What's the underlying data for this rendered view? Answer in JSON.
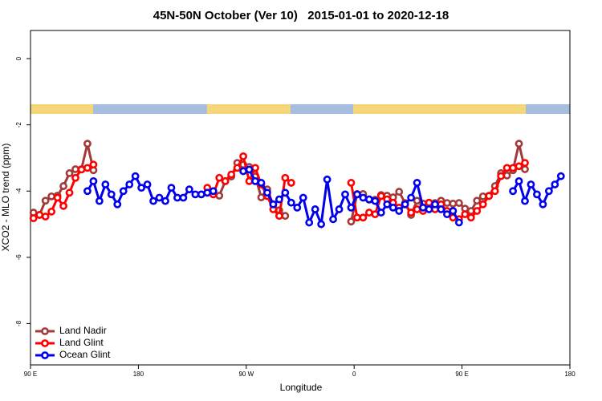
{
  "chart_data": {
    "type": "line",
    "title": "45N-50N October (Ver 10)   2015-01-01 to 2020-12-18",
    "x_label": "Longitude",
    "y_label": "XCO2 - MLO trend (ppm)",
    "xlim": [
      90,
      540
    ],
    "xticks": [
      {
        "value": 90,
        "label": "90 E"
      },
      {
        "value": 180,
        "label": "180"
      },
      {
        "value": 270,
        "label": "90 W"
      },
      {
        "value": 360,
        "label": "0"
      },
      {
        "value": 450,
        "label": "90 E"
      },
      {
        "value": 540,
        "label": "180"
      }
    ],
    "ylim": [
      -9.25,
      0.85
    ],
    "yticks": [
      0,
      -2,
      -4,
      -6,
      -8
    ],
    "legend": "bottom-left",
    "x": [
      92.5,
      97.5,
      102.5,
      107.5,
      112.5,
      117.5,
      122.5,
      127.5,
      132.5,
      137.5,
      142.5,
      147.5,
      152.5,
      157.5,
      162.5,
      167.5,
      172.5,
      177.5,
      182.5,
      187.5,
      192.5,
      197.5,
      202.5,
      207.5,
      212.5,
      217.5,
      222.5,
      227.5,
      232.5,
      237.5,
      242.5,
      247.5,
      252.5,
      257.5,
      262.5,
      267.5,
      272.5,
      277.5,
      282.5,
      287.5,
      292.5,
      297.5,
      302.5,
      307.5,
      312.5,
      317.5,
      322.5,
      327.5,
      332.5,
      337.5,
      342.5,
      347.5,
      352.5,
      357.5,
      362.5,
      367.5,
      372.5,
      377.5,
      382.5,
      387.5,
      392.5,
      397.5,
      402.5,
      407.5,
      412.5,
      417.5,
      422.5,
      427.5,
      432.5,
      437.5,
      442.5,
      447.5,
      452.5,
      457.5,
      462.5,
      467.5,
      472.5,
      477.5,
      482.5,
      487.5,
      492.5,
      497.5,
      502.5,
      507.5,
      512.5,
      517.5,
      522.5,
      527.5,
      532.5
    ],
    "series": [
      {
        "name": "Land Nadir",
        "color": "#a33a3a",
        "values": [
          -4.65,
          -4.72,
          -4.29,
          -4.16,
          -4.14,
          -3.85,
          -3.46,
          -3.34,
          -3.34,
          -2.57,
          -3.37,
          null,
          null,
          null,
          null,
          null,
          null,
          null,
          null,
          null,
          null,
          null,
          null,
          null,
          null,
          null,
          null,
          null,
          null,
          -4.04,
          -4.04,
          -4.14,
          -3.7,
          -3.56,
          -3.15,
          -3.2,
          -3.27,
          -3.56,
          -4.19,
          -3.95,
          -4.41,
          -4.58,
          -4.75,
          null,
          null,
          null,
          null,
          null,
          null,
          null,
          null,
          null,
          null,
          -4.92,
          -4.09,
          -4.09,
          -4.26,
          -4.26,
          -4.12,
          -4.14,
          -4.19,
          -4.02,
          -4.36,
          -4.72,
          -4.29,
          -4.38,
          -4.46,
          -4.36,
          -4.29,
          -4.36,
          -4.38,
          -4.36,
          -4.53,
          -4.6,
          -4.29,
          -4.16,
          -4.14,
          -3.85,
          -3.46,
          -3.53,
          -3.37,
          -2.57,
          -3.34,
          null,
          null,
          null,
          null,
          null,
          null
        ]
      },
      {
        "name": "Land Glint",
        "color": "#ff0000",
        "values": [
          -4.82,
          -4.72,
          -4.77,
          -4.62,
          -4.2,
          -4.45,
          -4.05,
          -3.6,
          -3.35,
          -3.3,
          -3.2,
          null,
          null,
          null,
          null,
          null,
          null,
          null,
          null,
          null,
          null,
          null,
          null,
          null,
          null,
          null,
          null,
          null,
          null,
          -3.9,
          -4.1,
          -3.6,
          -3.7,
          -3.5,
          -3.3,
          -2.95,
          -3.7,
          -3.3,
          -3.8,
          -4.15,
          -4.55,
          -4.75,
          -3.6,
          -3.75,
          null,
          null,
          null,
          null,
          null,
          null,
          null,
          null,
          null,
          -3.75,
          -4.8,
          -4.8,
          -4.65,
          -4.7,
          -4.15,
          -4.25,
          -4.35,
          -4.5,
          -4.4,
          -4.65,
          -4.55,
          -4.6,
          -4.35,
          -4.55,
          -4.4,
          -4.6,
          -4.8,
          -4.85,
          -4.7,
          -4.8,
          -4.6,
          -4.4,
          -4.15,
          -4.0,
          -3.55,
          -3.3,
          -3.3,
          -3.25,
          -3.15,
          null,
          null,
          null,
          null,
          null,
          null
        ]
      },
      {
        "name": "Ocean Glint",
        "color": "#0000ee",
        "values": [
          null,
          null,
          null,
          null,
          null,
          null,
          null,
          null,
          null,
          -4.0,
          -3.7,
          -4.3,
          -3.8,
          -4.1,
          -4.4,
          -4.0,
          -3.8,
          -3.55,
          -3.9,
          -3.8,
          -4.3,
          -4.2,
          -4.3,
          -3.9,
          -4.2,
          -4.2,
          -3.95,
          -4.1,
          -4.1,
          -4.05,
          -4.0,
          null,
          null,
          null,
          null,
          -3.4,
          -3.35,
          -3.7,
          -3.75,
          -4.05,
          -4.4,
          -4.25,
          -4.05,
          -4.35,
          -4.5,
          -4.2,
          -4.95,
          -4.55,
          -5.0,
          -3.65,
          -4.85,
          -4.55,
          -4.1,
          -4.5,
          -4.1,
          -4.2,
          -4.25,
          -4.3,
          -4.65,
          -4.4,
          -4.5,
          -4.6,
          -4.4,
          -4.2,
          -3.75,
          -4.5,
          -4.55,
          -4.4,
          -4.55,
          -4.7,
          -4.6,
          -4.95,
          null,
          null,
          null,
          null,
          null,
          null,
          null,
          null,
          -4.0,
          -3.7,
          -4.3,
          -3.8,
          -4.1,
          -4.4,
          -4.0,
          -3.8,
          -3.55
        ]
      }
    ]
  }
}
